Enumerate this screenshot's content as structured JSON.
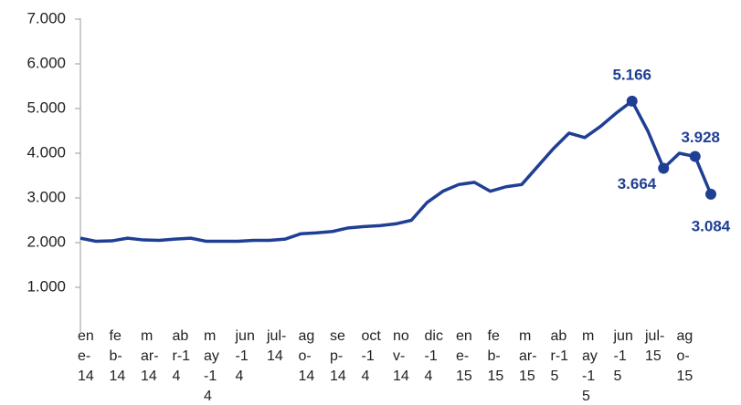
{
  "chart_data": {
    "type": "line",
    "categories": [
      "ene-14",
      null,
      "feb-14",
      null,
      "mar-14",
      null,
      "abr-14",
      null,
      "may-14",
      null,
      "jun-14",
      null,
      "jul-14",
      null,
      "ago-14",
      null,
      "sep-14",
      null,
      "oct-14",
      null,
      "nov-14",
      null,
      "dic-14",
      null,
      "ene-15",
      null,
      "feb-15",
      null,
      "mar-15",
      null,
      "abr-15",
      null,
      "may-15",
      null,
      "jun-15",
      null,
      "jul-15",
      null,
      "ago-15",
      null,
      null
    ],
    "series": [
      {
        "color": "#1f3f94",
        "values": [
          2100,
          2030,
          2040,
          2100,
          2060,
          2050,
          2080,
          2100,
          2030,
          2030,
          2030,
          2050,
          2050,
          2080,
          2200,
          2220,
          2250,
          2330,
          2360,
          2380,
          2420,
          2500,
          2900,
          3150,
          3300,
          3350,
          3150,
          3250,
          3300,
          3700,
          4100,
          4450,
          4350,
          4600,
          4900,
          5166,
          4500,
          3664,
          4000,
          3928,
          3084
        ],
        "value_labels": [
          null,
          null,
          null,
          null,
          null,
          null,
          null,
          null,
          null,
          null,
          null,
          null,
          null,
          null,
          null,
          null,
          null,
          null,
          null,
          null,
          null,
          null,
          null,
          null,
          null,
          null,
          null,
          null,
          null,
          null,
          null,
          null,
          null,
          null,
          null,
          "5.166",
          null,
          "3.664",
          null,
          "3.928",
          "3.084"
        ]
      }
    ],
    "ylim": [
      0,
      7000
    ],
    "yticks": [
      {
        "value": 1000,
        "label": "1.000"
      },
      {
        "value": 2000,
        "label": "2.000"
      },
      {
        "value": 3000,
        "label": "3.000"
      },
      {
        "value": 4000,
        "label": "4.000"
      },
      {
        "value": 5000,
        "label": "5.000"
      },
      {
        "value": 6000,
        "label": "6.000"
      },
      {
        "value": 7000,
        "label": "7.000"
      }
    ],
    "grid": false
  }
}
